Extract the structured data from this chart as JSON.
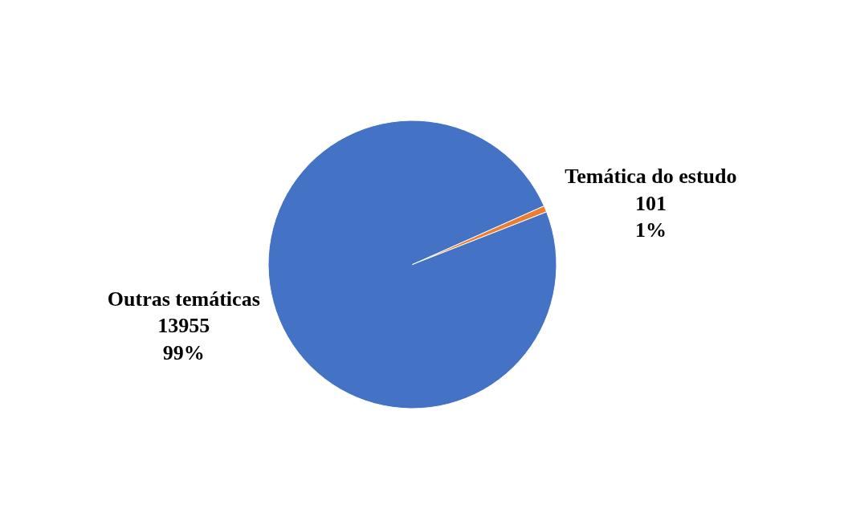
{
  "chart_data": {
    "type": "pie",
    "categories": [
      "Temática do estudo",
      "Outras temáticas"
    ],
    "values": [
      101,
      13955
    ],
    "colors": [
      "#ed7d31",
      "#4472c4"
    ],
    "value_labels": [
      "101\n1%",
      "13955\n99%"
    ],
    "legend": false
  }
}
